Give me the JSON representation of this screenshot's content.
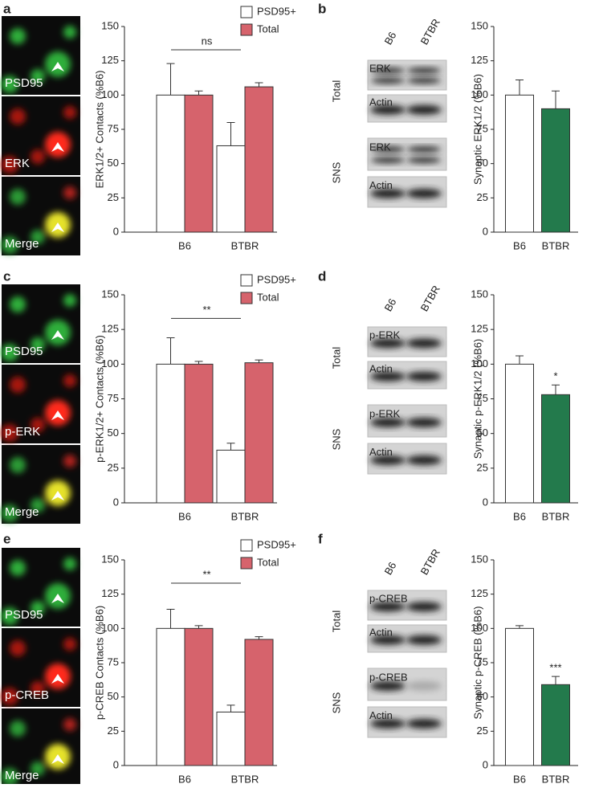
{
  "chart_data": [
    {
      "type": "grouped-bar",
      "ylabel": "ERK1/2+ Contacts (%B6)",
      "categories": [
        "B6",
        "BTBR"
      ],
      "series": [
        {
          "name": "PSD95+",
          "color": "#ffffff",
          "values": [
            100,
            63
          ],
          "errors": [
            23,
            17
          ]
        },
        {
          "name": "Total",
          "color": "#d6636c",
          "values": [
            100,
            106
          ],
          "errors": [
            3,
            3
          ]
        }
      ],
      "annotation": "ns",
      "ylim": [
        0,
        150
      ],
      "yticks": [
        0,
        25,
        50,
        75,
        100,
        125,
        150
      ],
      "legend": "top"
    },
    {
      "type": "bar",
      "ylabel": "Synaptic ERK1/2 (%B6)",
      "categories": [
        "B6",
        "BTBR"
      ],
      "values": [
        100,
        90
      ],
      "errors": [
        11,
        13
      ],
      "colors": [
        "#ffffff",
        "#237a4c"
      ],
      "ylim": [
        0,
        150
      ],
      "yticks": [
        0,
        25,
        50,
        75,
        100,
        125,
        150
      ]
    },
    {
      "type": "grouped-bar",
      "ylabel": "p-ERK1/2+ Contacts (%B6)",
      "categories": [
        "B6",
        "BTBR"
      ],
      "series": [
        {
          "name": "PSD95+",
          "color": "#ffffff",
          "values": [
            100,
            38
          ],
          "errors": [
            19,
            5
          ]
        },
        {
          "name": "Total",
          "color": "#d6636c",
          "values": [
            100,
            101
          ],
          "errors": [
            2,
            2
          ]
        }
      ],
      "annotation": "**",
      "ylim": [
        0,
        150
      ],
      "yticks": [
        0,
        25,
        50,
        75,
        100,
        125,
        150
      ],
      "legend": "top"
    },
    {
      "type": "bar",
      "ylabel": "Synaptic p-ERK1/2 (%B6)",
      "categories": [
        "B6",
        "BTBR"
      ],
      "values": [
        100,
        78
      ],
      "errors": [
        6,
        7
      ],
      "colors": [
        "#ffffff",
        "#237a4c"
      ],
      "annotation": "*",
      "ylim": [
        0,
        150
      ],
      "yticks": [
        0,
        25,
        50,
        75,
        100,
        125,
        150
      ]
    },
    {
      "type": "grouped-bar",
      "ylabel": "p-CREB Contacts (%B6)",
      "categories": [
        "B6",
        "BTBR"
      ],
      "series": [
        {
          "name": "PSD95+",
          "color": "#ffffff",
          "values": [
            100,
            39
          ],
          "errors": [
            14,
            5
          ]
        },
        {
          "name": "Total",
          "color": "#d6636c",
          "values": [
            100,
            92
          ],
          "errors": [
            2,
            2
          ]
        }
      ],
      "annotation": "**",
      "ylim": [
        0,
        150
      ],
      "yticks": [
        0,
        25,
        50,
        75,
        100,
        125,
        150
      ],
      "legend": "top"
    },
    {
      "type": "bar",
      "ylabel": "Synaptic p-CREB (%B6)",
      "categories": [
        "B6",
        "BTBR"
      ],
      "values": [
        100,
        59
      ],
      "errors": [
        2,
        6
      ],
      "colors": [
        "#ffffff",
        "#237a4c"
      ],
      "annotation": "***",
      "ylim": [
        0,
        150
      ],
      "yticks": [
        0,
        25,
        50,
        75,
        100,
        125,
        150
      ]
    }
  ],
  "panel_letters": [
    "a",
    "b",
    "c",
    "d",
    "e",
    "f"
  ],
  "micrographs": [
    [
      "PSD95",
      "ERK",
      "Merge"
    ],
    [
      "PSD95",
      "p-ERK",
      "Merge"
    ],
    [
      "PSD95",
      "p-CREB",
      "Merge"
    ]
  ],
  "blots": [
    {
      "lanes": [
        "B6",
        "BTBR"
      ],
      "groups": [
        {
          "label": "Total",
          "rows": [
            "ERK",
            "Actin"
          ]
        },
        {
          "label": "SNS",
          "rows": [
            "ERK",
            "Actin"
          ]
        }
      ]
    },
    {
      "lanes": [
        "B6",
        "BTBR"
      ],
      "groups": [
        {
          "label": "Total",
          "rows": [
            "p-ERK",
            "Actin"
          ]
        },
        {
          "label": "SNS",
          "rows": [
            "p-ERK",
            "Actin"
          ]
        }
      ]
    },
    {
      "lanes": [
        "B6",
        "BTBR"
      ],
      "groups": [
        {
          "label": "Total",
          "rows": [
            "p-CREB",
            "Actin"
          ]
        },
        {
          "label": "SNS",
          "rows": [
            "p-CREB",
            "Actin"
          ]
        }
      ]
    }
  ]
}
